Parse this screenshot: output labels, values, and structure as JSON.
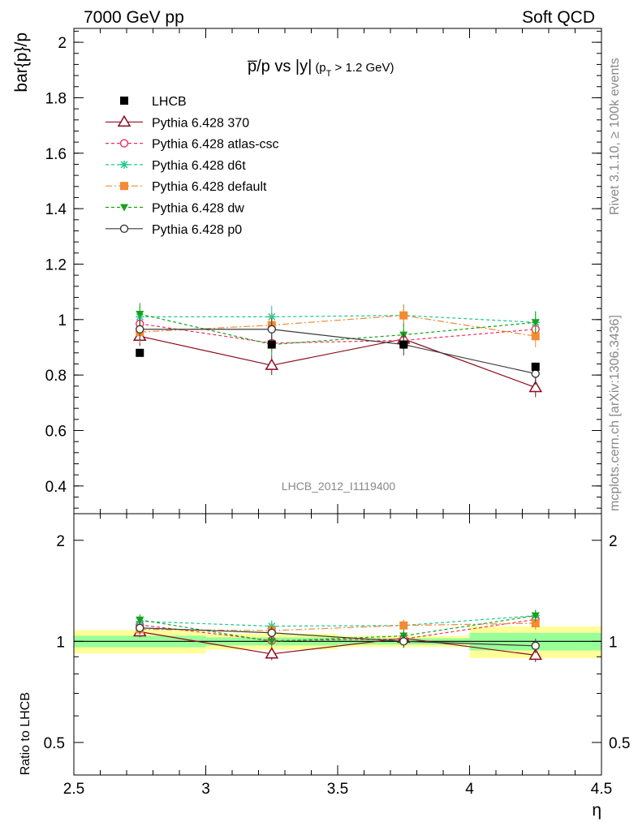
{
  "header": {
    "left": "7000 GeV pp",
    "right": "Soft QCD"
  },
  "side": {
    "top": "Rivet 3.1.10, ≥ 100k events",
    "bottom": "mcplots.cern.ch [arXiv:1306.3436]"
  },
  "chart_data": {
    "type": "line",
    "title_main": "p̅/p vs |y|",
    "title_sub": "(p",
    "title_sub_index": "T",
    "title_sub_rest": " > 1.2 GeV)",
    "watermark": "LHCB_2012_I1119400",
    "ylabel": "bar{p}/p",
    "xlabel": "η",
    "ratio_ylabel": "Ratio to LHCB",
    "xlim": [
      2.5,
      4.5
    ],
    "ylim": [
      0.3,
      2.05
    ],
    "ratio_ylim": [
      0.4,
      2.4
    ],
    "x_ticks": [
      "2.5",
      "3",
      "3.5",
      "4",
      "4.5"
    ],
    "y_ticks": [
      "0.4",
      "0.6",
      "0.8",
      "1",
      "1.2",
      "1.4",
      "1.6",
      "1.8",
      "2"
    ],
    "ratio_ticks": [
      "0.5",
      "1",
      "2"
    ],
    "x": [
      2.75,
      3.25,
      3.75,
      4.25
    ],
    "x_edges": [
      2.5,
      3.0,
      3.5,
      4.0,
      4.5
    ],
    "data": {
      "name": "LHCB",
      "values": [
        0.88,
        0.91,
        0.91,
        0.83
      ],
      "band_inner": [
        0.035,
        0.025,
        0.02,
        0.05
      ],
      "band_outer": [
        0.07,
        0.05,
        0.035,
        0.09
      ]
    },
    "series": [
      {
        "name": "Pythia 6.428 370",
        "values": [
          0.94,
          0.835,
          0.93,
          0.755
        ],
        "err": [
          0.035,
          0.035,
          0.035,
          0.035
        ],
        "color": "#8b0b1e",
        "marker": "triangle-open",
        "dash": "solid"
      },
      {
        "name": "Pythia 6.428 atlas-csc",
        "values": [
          0.985,
          0.915,
          0.925,
          0.965
        ],
        "err": [
          0.03,
          0.03,
          0.03,
          0.03
        ],
        "color": "#f0305a",
        "marker": "circle-open",
        "dash": "dashed"
      },
      {
        "name": "Pythia 6.428 d6t",
        "values": [
          1.01,
          1.01,
          1.015,
          0.99
        ],
        "err": [
          0.04,
          0.04,
          0.04,
          0.04
        ],
        "color": "#1fc890",
        "marker": "star",
        "dash": "dashed"
      },
      {
        "name": "Pythia 6.428 default",
        "values": [
          0.955,
          0.98,
          1.015,
          0.94
        ],
        "err": [
          0.04,
          0.04,
          0.04,
          0.04
        ],
        "color": "#f58a32",
        "marker": "square",
        "dash": "dashdot"
      },
      {
        "name": "Pythia 6.428 dw",
        "values": [
          1.02,
          0.91,
          0.945,
          0.99
        ],
        "err": [
          0.04,
          0.04,
          0.04,
          0.04
        ],
        "color": "#17a21b",
        "marker": "triangle-down",
        "dash": "dashed"
      },
      {
        "name": "Pythia 6.428 p0",
        "values": [
          0.965,
          0.965,
          0.91,
          0.805
        ],
        "err": [
          0.04,
          0.04,
          0.04,
          0.04
        ],
        "color": "#3a3a3a",
        "marker": "circle-open",
        "dash": "solid"
      }
    ],
    "colors": {
      "band_outer": "#ffff99",
      "band_inner": "#99ff99"
    }
  }
}
